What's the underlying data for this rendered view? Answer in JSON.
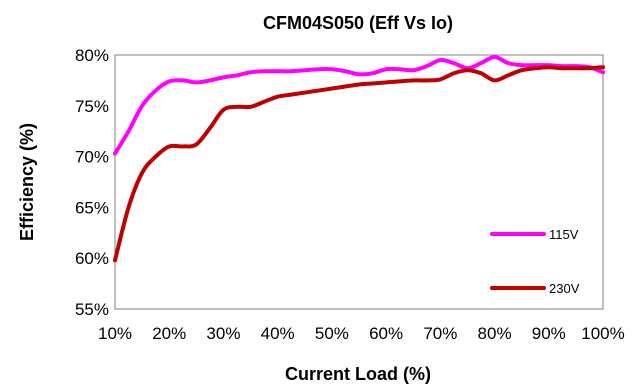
{
  "chart_data": {
    "type": "line",
    "title": "CFM04S050 (Eff Vs Io)",
    "xlabel": "Current Load (%)",
    "ylabel": "Efficiency (%)",
    "x": [
      10,
      12.5,
      15,
      17.5,
      20,
      22.5,
      25,
      27.5,
      30,
      32.5,
      35,
      37.5,
      40,
      42.5,
      45,
      47.5,
      50,
      52.5,
      55,
      57.5,
      60,
      62.5,
      65,
      67.5,
      70,
      72.5,
      75,
      77.5,
      80,
      82.5,
      85,
      87.5,
      90,
      92.5,
      95,
      97.5,
      100
    ],
    "x_ticks": [
      "10%",
      "20%",
      "30%",
      "40%",
      "50%",
      "60%",
      "70%",
      "80%",
      "90%",
      "100%"
    ],
    "y_ticks": [
      "55%",
      "60%",
      "65%",
      "70%",
      "75%",
      "80%"
    ],
    "xlim": [
      10,
      100
    ],
    "ylim": [
      55,
      80
    ],
    "grid": false,
    "legend_position": "right",
    "series": [
      {
        "name": "115V",
        "color": "#FF00FF",
        "values": [
          70.3,
          72.5,
          75.0,
          76.5,
          77.4,
          77.5,
          77.3,
          77.5,
          77.8,
          78.0,
          78.3,
          78.4,
          78.4,
          78.4,
          78.5,
          78.6,
          78.6,
          78.4,
          78.1,
          78.2,
          78.6,
          78.6,
          78.5,
          78.9,
          79.5,
          79.2,
          78.7,
          79.2,
          79.8,
          79.2,
          79.0,
          79.0,
          79.0,
          78.9,
          78.9,
          78.8,
          78.3
        ]
      },
      {
        "name": "230V",
        "color": "#C00000",
        "values": [
          59.8,
          65.0,
          68.4,
          70.0,
          71.0,
          71.0,
          71.2,
          72.8,
          74.6,
          74.9,
          74.9,
          75.4,
          75.9,
          76.1,
          76.3,
          76.5,
          76.7,
          76.9,
          77.1,
          77.2,
          77.3,
          77.4,
          77.5,
          77.5,
          77.6,
          78.2,
          78.5,
          78.2,
          77.5,
          78.0,
          78.5,
          78.7,
          78.8,
          78.7,
          78.7,
          78.7,
          78.8
        ]
      }
    ]
  }
}
